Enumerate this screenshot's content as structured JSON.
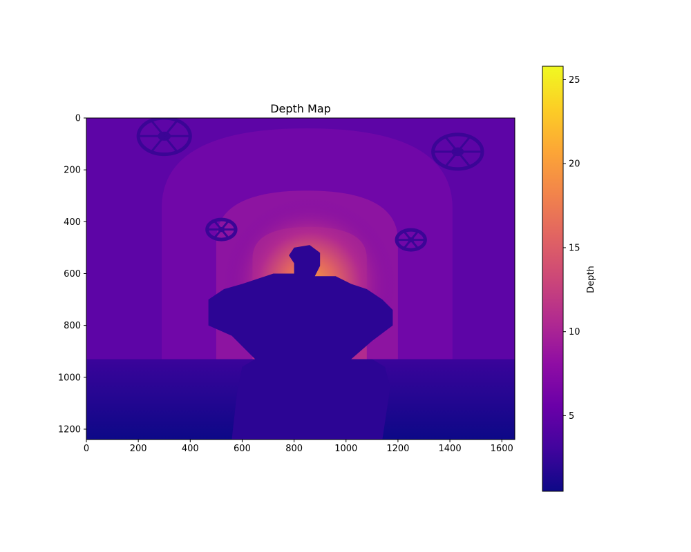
{
  "chart_data": {
    "type": "heatmap",
    "title": "Depth Map",
    "image_width": 1650,
    "image_height": 1240,
    "xlim": [
      0,
      1650
    ],
    "ylim": [
      1240,
      0
    ],
    "x_ticks": [
      0,
      200,
      400,
      600,
      800,
      1000,
      1200,
      1400,
      1600
    ],
    "y_ticks": [
      0,
      200,
      400,
      600,
      800,
      1000,
      1200
    ],
    "colormap": "plasma",
    "colorbar": {
      "label": "Depth",
      "min": 0.5,
      "max": 25.8,
      "ticks": [
        5,
        10,
        15,
        20,
        25
      ]
    },
    "grid": false,
    "depth_summary": {
      "foreground_figure_depth": 1.5,
      "floor_near_depth": 0.6,
      "floor_far_depth": 3.0,
      "walls_depth": 4.5,
      "corridor_center_depth": 16
    },
    "colors": {
      "near": "#0d0887",
      "mid": "#9c179e",
      "far": "#f0f921"
    }
  }
}
